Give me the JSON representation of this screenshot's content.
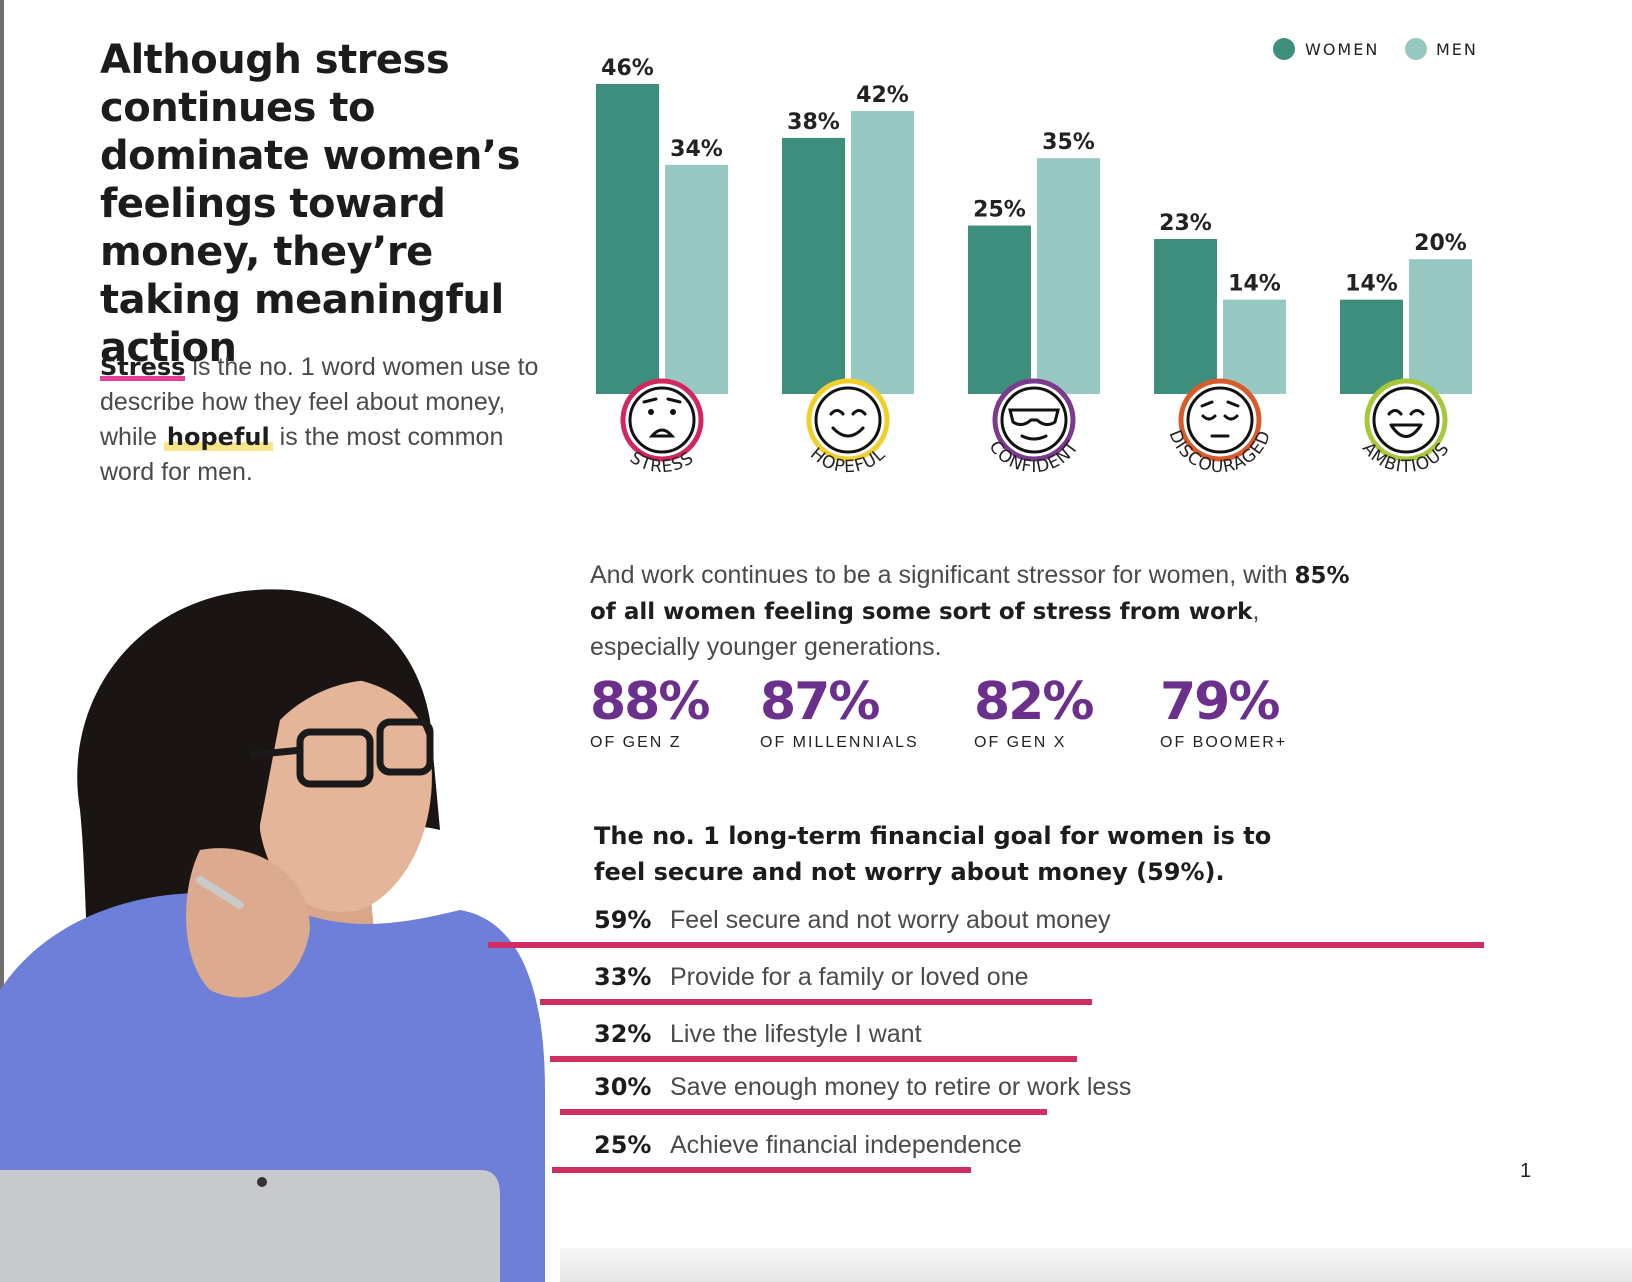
{
  "headline": "Although stress continues to dominate women’s feelings toward money, they’re taking meaningful action",
  "intro": {
    "word_women": "Stress",
    "text_1": " is the no. 1 word women use to describe how they feel about money, while ",
    "word_men": "hopeful",
    "text_2": " is the most common word for men."
  },
  "legend": {
    "women": "WOMEN",
    "men": "MEN"
  },
  "colors": {
    "women": "#3e8e7e",
    "men": "#97c9c2",
    "accent_purple": "#6b2f8c",
    "accent_pink": "#cf2f60"
  },
  "chart_data": {
    "type": "bar",
    "categories": [
      "STRESS",
      "HOPEFUL",
      "CONFIDENT",
      "DISCOURAGED",
      "AMBITIOUS"
    ],
    "series": [
      {
        "name": "WOMEN",
        "values": [
          46,
          38,
          25,
          23,
          14
        ]
      },
      {
        "name": "MEN",
        "values": [
          34,
          42,
          35,
          14,
          20
        ]
      }
    ],
    "value_suffix": "%",
    "ylim": [
      0,
      46
    ],
    "legend_position": "top-right",
    "grid": false,
    "icons": [
      {
        "name": "sad-face-icon",
        "ring": "#d2265e"
      },
      {
        "name": "smiling-face-icon",
        "ring": "#f2cf2a"
      },
      {
        "name": "sunglasses-face-icon",
        "ring": "#7b3a8e"
      },
      {
        "name": "discouraged-face-icon",
        "ring": "#db5a2a"
      },
      {
        "name": "grinning-face-icon",
        "ring": "#a9c73a"
      }
    ]
  },
  "work": {
    "text_1": "And work continues to be a significant stressor for women, with ",
    "bold": "85% of all women feeling some sort of stress from work",
    "text_2": ", especially younger generations."
  },
  "generations": [
    {
      "value": "88%",
      "label": "OF GEN Z"
    },
    {
      "value": "87%",
      "label": "OF MILLENNIALS"
    },
    {
      "value": "82%",
      "label": "OF GEN X"
    },
    {
      "value": "79%",
      "label": "OF BOOMER+"
    }
  ],
  "goals": {
    "heading": "The no. 1 long-term financial goal for women is to feel secure and not worry about money (59%).",
    "items": [
      {
        "pct": "59%",
        "label": "Feel secure and not worry about money",
        "value": 59
      },
      {
        "pct": "33%",
        "label": "Provide for a family or loved one",
        "value": 33
      },
      {
        "pct": "32%",
        "label": "Live the lifestyle I want",
        "value": 32
      },
      {
        "pct": "30%",
        "label": "Save enough money to retire or work less",
        "value": 30
      },
      {
        "pct": "25%",
        "label": "Achieve financial independence",
        "value": 25
      }
    ]
  },
  "page_number": "1"
}
